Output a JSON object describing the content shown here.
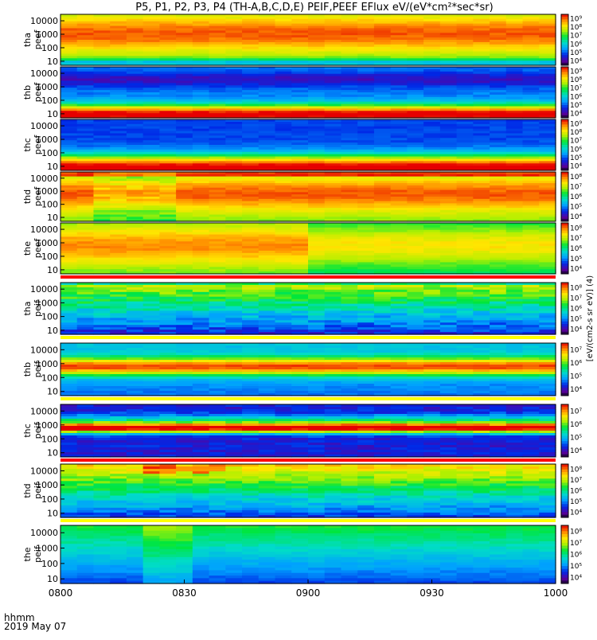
{
  "title": "P5, P1, P2, P3, P4 (TH-A,B,C,D,E) PEIF,PEEF EFlux eV/(eV*cm²*sec*sr)",
  "time_axis": {
    "label_line1": "hhmm",
    "label_line2": "2019 May 07",
    "ticks": [
      "0800",
      "0830",
      "0900",
      "0930",
      "1000"
    ]
  },
  "chart_data": {
    "type": "heatmap",
    "title": "P5, P1, P2, P3, P4 (TH-A,B,C,D,E) PEIF,PEEF EFlux eV/(eV*cm²*sec*sr)",
    "x_range": [
      "0800",
      "1000"
    ],
    "ylim": [
      5,
      30000
    ],
    "yscale": "log",
    "ytick_labels": [
      "10",
      "100",
      "1000",
      "10000"
    ],
    "colorbar_label": "[eV/(cm2-s sr eV)] (4)",
    "panels": [
      {
        "label": [
          "tha",
          "peef"
        ],
        "cbar_ticks": [
          "10⁴",
          "10⁵",
          "10⁶",
          "10⁷",
          "10⁸",
          "10⁹"
        ],
        "profile": "electron_a",
        "gap_after": false
      },
      {
        "label": [
          "thb",
          "peef"
        ],
        "cbar_ticks": [
          "10⁴",
          "10⁵",
          "10⁶",
          "10⁷",
          "10⁸",
          "10⁹"
        ],
        "profile": "electron_b",
        "gap_after": false
      },
      {
        "label": [
          "thc",
          "peef"
        ],
        "cbar_ticks": [
          "10⁴",
          "10⁵",
          "10⁶",
          "10⁷",
          "10⁸",
          "10⁹"
        ],
        "profile": "electron_c",
        "gap_after": false
      },
      {
        "label": [
          "thd",
          "peef"
        ],
        "cbar_ticks": [
          "10⁴",
          "10⁵",
          "10⁶",
          "10⁷",
          "10⁸"
        ],
        "profile": "electron_d",
        "gap_after": false
      },
      {
        "label": [
          "the",
          "peef"
        ],
        "cbar_ticks": [
          "10⁴",
          "10⁵",
          "10⁶",
          "10⁷",
          "10⁸"
        ],
        "profile": "electron_e",
        "gap_after": true
      },
      {
        "label": [
          "tha",
          "peif"
        ],
        "cbar_ticks": [
          "10⁴",
          "10⁵",
          "10⁶",
          "10⁷",
          "10⁸"
        ],
        "profile": "ion_a",
        "gap_after": true
      },
      {
        "label": [
          "thb",
          "peif"
        ],
        "cbar_ticks": [
          "10⁴",
          "10⁵",
          "10⁶",
          "10⁷"
        ],
        "profile": "ion_b",
        "gap_after": true
      },
      {
        "label": [
          "thc",
          "peif"
        ],
        "cbar_ticks": [
          "10⁴",
          "10⁵",
          "10⁶",
          "10⁷"
        ],
        "profile": "ion_c",
        "gap_after": true
      },
      {
        "label": [
          "thd",
          "peif"
        ],
        "cbar_ticks": [
          "10⁴",
          "10⁵",
          "10⁶",
          "10⁷",
          "10⁸"
        ],
        "profile": "ion_d",
        "gap_after": true
      },
      {
        "label": [
          "the",
          "peif"
        ],
        "cbar_ticks": [
          "10⁴",
          "10⁵",
          "10⁶",
          "10⁷",
          "10⁸"
        ],
        "profile": "ion_e",
        "gap_after": false
      }
    ]
  }
}
